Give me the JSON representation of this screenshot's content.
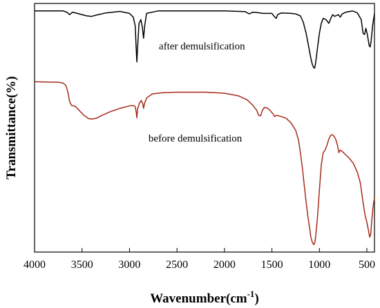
{
  "chart_data": {
    "type": "line",
    "xlabel": "Wavenumber(cm",
    "xlabel_sup": "-1",
    "xlabel_close": ")",
    "ylabel": "Transmittance(%)",
    "xlim": [
      4000,
      420
    ],
    "x_reversed": true,
    "ylim": [
      0,
      1
    ],
    "y_ticks_labeled": false,
    "x_ticks": [
      4000,
      3500,
      3000,
      2500,
      2000,
      1500,
      1000,
      500
    ],
    "x_tick_labels": [
      "4000",
      "3500",
      "3000",
      "2500",
      "2000",
      "1500",
      "1000",
      "500"
    ],
    "annotations": [
      {
        "text": "after demulsification",
        "x": 2690,
        "y": 0.815
      },
      {
        "text": "before demulsification",
        "x": 2800,
        "y": 0.445
      }
    ],
    "series": [
      {
        "color": "#000000",
        "points": [
          [
            4000,
            0.97
          ],
          [
            3700,
            0.97
          ],
          [
            3660,
            0.965
          ],
          [
            3630,
            0.955
          ],
          [
            3600,
            0.965
          ],
          [
            3550,
            0.96
          ],
          [
            3450,
            0.95
          ],
          [
            3400,
            0.948
          ],
          [
            3350,
            0.953
          ],
          [
            3250,
            0.962
          ],
          [
            3100,
            0.968
          ],
          [
            3000,
            0.96
          ],
          [
            2960,
            0.945
          ],
          [
            2940,
            0.91
          ],
          [
            2930,
            0.82
          ],
          [
            2922,
            0.765
          ],
          [
            2915,
            0.82
          ],
          [
            2900,
            0.92
          ],
          [
            2880,
            0.935
          ],
          [
            2865,
            0.905
          ],
          [
            2852,
            0.86
          ],
          [
            2840,
            0.91
          ],
          [
            2820,
            0.96
          ],
          [
            2700,
            0.97
          ],
          [
            2000,
            0.97
          ],
          [
            1780,
            0.967
          ],
          [
            1740,
            0.958
          ],
          [
            1700,
            0.965
          ],
          [
            1650,
            0.963
          ],
          [
            1600,
            0.96
          ],
          [
            1500,
            0.96
          ],
          [
            1470,
            0.945
          ],
          [
            1455,
            0.94
          ],
          [
            1440,
            0.955
          ],
          [
            1400,
            0.962
          ],
          [
            1300,
            0.96
          ],
          [
            1250,
            0.958
          ],
          [
            1200,
            0.95
          ],
          [
            1170,
            0.925
          ],
          [
            1140,
            0.88
          ],
          [
            1110,
            0.82
          ],
          [
            1090,
            0.78
          ],
          [
            1075,
            0.755
          ],
          [
            1060,
            0.742
          ],
          [
            1050,
            0.74
          ],
          [
            1040,
            0.76
          ],
          [
            1020,
            0.82
          ],
          [
            1000,
            0.88
          ],
          [
            980,
            0.92
          ],
          [
            960,
            0.94
          ],
          [
            930,
            0.935
          ],
          [
            900,
            0.92
          ],
          [
            880,
            0.94
          ],
          [
            860,
            0.955
          ],
          [
            840,
            0.948
          ],
          [
            800,
            0.955
          ],
          [
            780,
            0.945
          ],
          [
            760,
            0.958
          ],
          [
            720,
            0.965
          ],
          [
            650,
            0.97
          ],
          [
            600,
            0.962
          ],
          [
            560,
            0.935
          ],
          [
            540,
            0.88
          ],
          [
            525,
            0.875
          ],
          [
            510,
            0.9
          ],
          [
            495,
            0.875
          ],
          [
            475,
            0.83
          ],
          [
            465,
            0.825
          ],
          [
            455,
            0.85
          ],
          [
            440,
            0.91
          ],
          [
            420,
            0.96
          ]
        ]
      },
      {
        "color": "#a52a1a",
        "points": [
          [
            4000,
            0.685
          ],
          [
            3750,
            0.683
          ],
          [
            3700,
            0.68
          ],
          [
            3670,
            0.67
          ],
          [
            3650,
            0.645
          ],
          [
            3630,
            0.605
          ],
          [
            3610,
            0.59
          ],
          [
            3570,
            0.586
          ],
          [
            3530,
            0.57
          ],
          [
            3480,
            0.55
          ],
          [
            3430,
            0.537
          ],
          [
            3400,
            0.535
          ],
          [
            3350,
            0.538
          ],
          [
            3300,
            0.548
          ],
          [
            3200,
            0.565
          ],
          [
            3100,
            0.578
          ],
          [
            3000,
            0.588
          ],
          [
            2960,
            0.59
          ],
          [
            2940,
            0.585
          ],
          [
            2928,
            0.56
          ],
          [
            2922,
            0.54
          ],
          [
            2915,
            0.575
          ],
          [
            2895,
            0.6
          ],
          [
            2875,
            0.61
          ],
          [
            2860,
            0.595
          ],
          [
            2852,
            0.578
          ],
          [
            2840,
            0.6
          ],
          [
            2820,
            0.62
          ],
          [
            2760,
            0.636
          ],
          [
            2650,
            0.641
          ],
          [
            2500,
            0.643
          ],
          [
            2200,
            0.643
          ],
          [
            2000,
            0.639
          ],
          [
            1850,
            0.628
          ],
          [
            1760,
            0.612
          ],
          [
            1700,
            0.59
          ],
          [
            1660,
            0.57
          ],
          [
            1640,
            0.55
          ],
          [
            1620,
            0.548
          ],
          [
            1600,
            0.57
          ],
          [
            1580,
            0.582
          ],
          [
            1550,
            0.58
          ],
          [
            1520,
            0.57
          ],
          [
            1490,
            0.557
          ],
          [
            1470,
            0.545
          ],
          [
            1450,
            0.55
          ],
          [
            1400,
            0.545
          ],
          [
            1350,
            0.538
          ],
          [
            1300,
            0.52
          ],
          [
            1250,
            0.49
          ],
          [
            1220,
            0.45
          ],
          [
            1200,
            0.4
          ],
          [
            1180,
            0.34
          ],
          [
            1160,
            0.27
          ],
          [
            1140,
            0.2
          ],
          [
            1120,
            0.14
          ],
          [
            1100,
            0.09
          ],
          [
            1090,
            0.06
          ],
          [
            1075,
            0.04
          ],
          [
            1060,
            0.03
          ],
          [
            1050,
            0.035
          ],
          [
            1040,
            0.06
          ],
          [
            1020,
            0.14
          ],
          [
            1000,
            0.25
          ],
          [
            980,
            0.35
          ],
          [
            960,
            0.4
          ],
          [
            940,
            0.41
          ],
          [
            920,
            0.43
          ],
          [
            900,
            0.455
          ],
          [
            880,
            0.47
          ],
          [
            865,
            0.472
          ],
          [
            850,
            0.468
          ],
          [
            830,
            0.455
          ],
          [
            810,
            0.43
          ],
          [
            795,
            0.4
          ],
          [
            780,
            0.41
          ],
          [
            760,
            0.405
          ],
          [
            720,
            0.39
          ],
          [
            680,
            0.375
          ],
          [
            640,
            0.355
          ],
          [
            600,
            0.32
          ],
          [
            570,
            0.28
          ],
          [
            540,
            0.2
          ],
          [
            520,
            0.15
          ],
          [
            500,
            0.12
          ],
          [
            480,
            0.08
          ],
          [
            470,
            0.06
          ],
          [
            460,
            0.07
          ],
          [
            450,
            0.12
          ],
          [
            435,
            0.18
          ],
          [
            420,
            0.22
          ]
        ]
      }
    ]
  }
}
